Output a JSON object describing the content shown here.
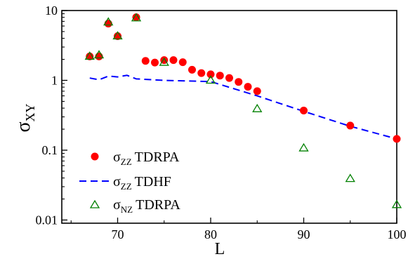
{
  "chart_data": {
    "type": "scatter",
    "xlabel": "L",
    "ylabel": "σ",
    "ylabel_sub": "XY",
    "xlim": [
      64,
      100
    ],
    "ylim": [
      0.009,
      10
    ],
    "yscale": "log",
    "xticks": [
      70,
      80,
      90,
      100
    ],
    "yticks": [
      0.01,
      0.1,
      1,
      10
    ],
    "ytick_labels": [
      "0.01",
      "0.1",
      "1",
      "10"
    ],
    "legend_position": "bottom-left",
    "series": [
      {
        "name_main": "σ",
        "name_sub": "ZZ",
        "name_rest": "TDRPA",
        "style": "filled-circle",
        "color": "#ff0000",
        "x": [
          67,
          68,
          69,
          70,
          72,
          73,
          74,
          75,
          76,
          77,
          78,
          79,
          80,
          81,
          82,
          83,
          84,
          85,
          90,
          95,
          100
        ],
        "y": [
          2.2,
          2.2,
          6.5,
          4.3,
          8.0,
          1.9,
          1.8,
          1.95,
          1.95,
          1.82,
          1.42,
          1.27,
          1.22,
          1.17,
          1.08,
          0.95,
          0.81,
          0.7,
          0.37,
          0.225,
          0.145
        ]
      },
      {
        "name_main": "σ",
        "name_sub": "ZZ",
        "name_rest": "TDHF",
        "style": "dashed-line",
        "color": "#0000ff",
        "x": [
          67,
          68,
          69,
          70,
          71,
          72,
          75,
          80,
          85,
          90,
          95,
          100
        ],
        "y": [
          1.08,
          1.02,
          1.15,
          1.12,
          1.18,
          1.05,
          1.0,
          0.96,
          0.6,
          0.36,
          0.22,
          0.145
        ]
      },
      {
        "name_main": "σ",
        "name_sub": "NZ",
        "name_rest": "TDRPA",
        "style": "open-triangle",
        "color": "#008000",
        "x": [
          67,
          68,
          69,
          70,
          72,
          75,
          80,
          85,
          90,
          95,
          100
        ],
        "y": [
          2.2,
          2.3,
          6.8,
          4.3,
          7.8,
          1.8,
          1.0,
          0.39,
          0.107,
          0.039,
          0.0165
        ]
      }
    ]
  }
}
